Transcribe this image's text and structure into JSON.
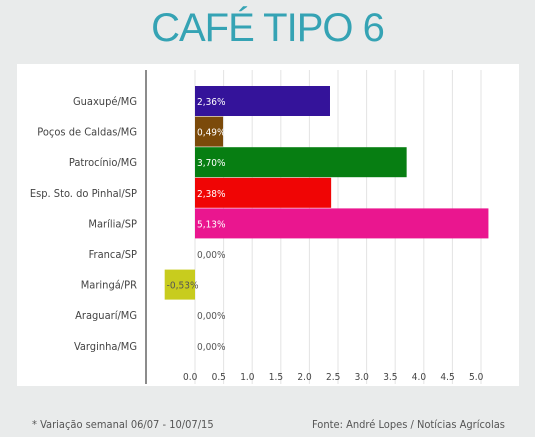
{
  "title": "CAFÉ TIPO 6",
  "footer": {
    "note": "* Variação semanal 06/07 - 10/07/15",
    "source": "Fonte: André Lopes / Notícias Agrícolas"
  },
  "chart_data": {
    "type": "bar",
    "orientation": "horizontal",
    "title": "CAFÉ TIPO 6",
    "categories": [
      "Guaxupé/MG",
      "Poços de Caldas/MG",
      "Patrocínio/MG",
      "Esp. Sto. do Pinhal/SP",
      "Marília/SP",
      "Franca/SP",
      "Maringá/PR",
      "Araguarí/MG",
      "Varginha/MG"
    ],
    "values": [
      2.36,
      0.49,
      3.7,
      2.38,
      5.13,
      0.0,
      -0.53,
      0.0,
      0.0
    ],
    "labels": [
      "2,36%",
      "0,49%",
      "3,70%",
      "2,38%",
      "5,13%",
      "0,00%",
      "-0,53%",
      "0,00%",
      "0,00%"
    ],
    "colors": [
      "#34139a",
      "#7b4a0a",
      "#077e12",
      "#f00505",
      "#ea168f",
      "#cccccc",
      "#c8cc1e",
      "#cccccc",
      "#cccccc"
    ],
    "xticks": [
      "0.0",
      "0.5",
      "1.0",
      "1.5",
      "2.0",
      "2.5",
      "3.0",
      "3.5",
      "4.0",
      "4.5",
      "5.0"
    ],
    "xlim": [
      -0.53,
      5.13
    ],
    "grid": true
  }
}
